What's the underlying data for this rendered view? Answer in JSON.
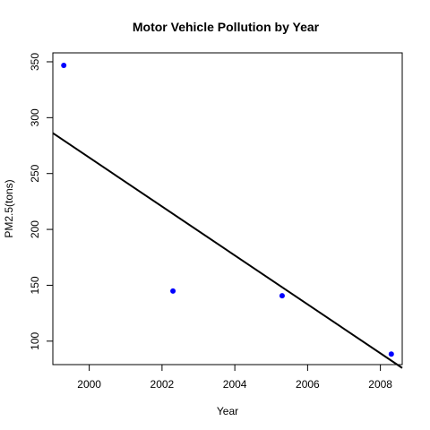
{
  "chart_data": {
    "type": "scatter",
    "title": "Motor Vehicle Pollution by Year",
    "xlabel": "Year",
    "ylabel": "PM2.5(tons)",
    "xlim": [
      1999,
      2008.6
    ],
    "ylim": [
      79,
      358
    ],
    "x_ticks": [
      2000,
      2002,
      2004,
      2006,
      2008
    ],
    "y_ticks": [
      100,
      150,
      200,
      250,
      300,
      350
    ],
    "point_color": "#0000ff",
    "line_color": "#000000",
    "grid": false,
    "legend": "none",
    "series": [
      {
        "x": [
          1999.3,
          2002.3,
          2005.3,
          2008.3
        ],
        "y": [
          346.8,
          144.8,
          140.6,
          88.4
        ]
      }
    ],
    "trendline": {
      "x": [
        1999.0,
        2008.6
      ],
      "y": [
        286.2,
        76.0
      ]
    }
  }
}
